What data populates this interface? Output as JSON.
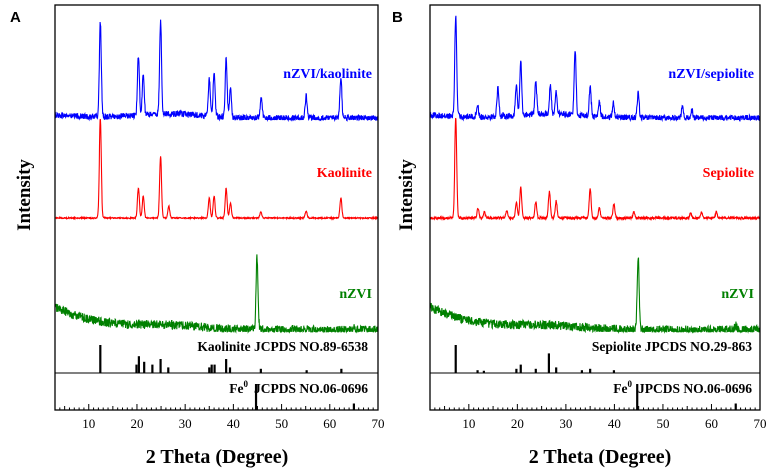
{
  "chart_data": [
    {
      "panel": "A",
      "type": "line",
      "xlabel": "2 Theta (Degree)",
      "ylabel": "Intensity",
      "xlim": [
        3,
        70
      ],
      "xticks": [
        10,
        20,
        30,
        40,
        50,
        60,
        70
      ],
      "series": [
        {
          "name": "nZVI/kaolinite",
          "color": "#0000ff",
          "baseline": 0.85,
          "noise": 0.03,
          "hump": 0.03,
          "peaks": [
            [
              12.4,
              0.95
            ],
            [
              20.3,
              0.6
            ],
            [
              21.3,
              0.4
            ],
            [
              24.9,
              0.92
            ],
            [
              35.0,
              0.38
            ],
            [
              36.0,
              0.45
            ],
            [
              38.5,
              0.58
            ],
            [
              39.4,
              0.3
            ],
            [
              45.8,
              0.2
            ],
            [
              55.1,
              0.22
            ],
            [
              62.3,
              0.4
            ]
          ]
        },
        {
          "name": "Kaolinite",
          "color": "#ff0000",
          "baseline": 0.5,
          "noise": 0.006,
          "hump": 0.0,
          "peaks": [
            [
              12.4,
              1.0
            ],
            [
              20.3,
              0.3
            ],
            [
              21.3,
              0.22
            ],
            [
              24.9,
              0.62
            ],
            [
              26.6,
              0.12
            ],
            [
              35.0,
              0.2
            ],
            [
              36.0,
              0.22
            ],
            [
              38.5,
              0.3
            ],
            [
              39.4,
              0.15
            ],
            [
              45.7,
              0.06
            ],
            [
              55.1,
              0.07
            ],
            [
              62.3,
              0.2
            ]
          ]
        },
        {
          "name": "nZVI",
          "color": "#008000",
          "baseline": 0.06,
          "noise": 0.05,
          "hump": 0.26,
          "peaks": [
            [
              44.9,
              0.8
            ],
            [
              65.0,
              0.05
            ]
          ]
        }
      ],
      "reference_patterns": [
        {
          "name": "Kaolinite JCPDS NO.89-6538",
          "color": "#000000",
          "sticks": [
            [
              12.4,
              1.0
            ],
            [
              19.9,
              0.3
            ],
            [
              20.4,
              0.6
            ],
            [
              21.5,
              0.4
            ],
            [
              23.2,
              0.3
            ],
            [
              24.9,
              0.5
            ],
            [
              26.5,
              0.2
            ],
            [
              35.0,
              0.2
            ],
            [
              35.5,
              0.3
            ],
            [
              36.1,
              0.3
            ],
            [
              38.5,
              0.5
            ],
            [
              39.3,
              0.2
            ],
            [
              45.7,
              0.15
            ],
            [
              55.2,
              0.1
            ],
            [
              62.4,
              0.15
            ]
          ]
        },
        {
          "name": "Fe",
          "name_sup": "0",
          "name_rest": "JCPDS NO.06-0696",
          "color": "#000000",
          "sticks": [
            [
              44.7,
              1.0
            ],
            [
              65.0,
              0.25
            ]
          ]
        }
      ]
    },
    {
      "panel": "B",
      "type": "line",
      "xlabel": "2 Theta (Degree)",
      "ylabel": "Intensity",
      "xlim": [
        2,
        70
      ],
      "xticks": [
        10,
        20,
        30,
        40,
        50,
        60,
        70
      ],
      "series": [
        {
          "name": "nZVI/sepiolite",
          "color": "#0000ff",
          "baseline": 0.85,
          "noise": 0.03,
          "hump": 0.03,
          "peaks": [
            [
              7.3,
              1.0
            ],
            [
              11.8,
              0.12
            ],
            [
              16.0,
              0.3
            ],
            [
              19.8,
              0.3
            ],
            [
              20.7,
              0.55
            ],
            [
              23.8,
              0.32
            ],
            [
              26.8,
              0.28
            ],
            [
              28.0,
              0.22
            ],
            [
              31.9,
              0.65
            ],
            [
              35.0,
              0.3
            ],
            [
              36.9,
              0.15
            ],
            [
              39.8,
              0.15
            ],
            [
              44.9,
              0.25
            ],
            [
              54.0,
              0.1
            ],
            [
              56.0,
              0.08
            ]
          ]
        },
        {
          "name": "Sepiolite",
          "color": "#ff0000",
          "baseline": 0.5,
          "noise": 0.012,
          "hump": 0.0,
          "peaks": [
            [
              7.3,
              1.0
            ],
            [
              11.9,
              0.1
            ],
            [
              13.2,
              0.06
            ],
            [
              17.8,
              0.07
            ],
            [
              19.8,
              0.15
            ],
            [
              20.7,
              0.32
            ],
            [
              23.8,
              0.16
            ],
            [
              26.6,
              0.26
            ],
            [
              28.0,
              0.17
            ],
            [
              35.0,
              0.3
            ],
            [
              36.9,
              0.1
            ],
            [
              39.9,
              0.14
            ],
            [
              44.0,
              0.06
            ],
            [
              55.7,
              0.05
            ],
            [
              58.0,
              0.06
            ],
            [
              61.0,
              0.06
            ]
          ]
        },
        {
          "name": "nZVI",
          "color": "#008000",
          "baseline": 0.06,
          "noise": 0.05,
          "hump": 0.26,
          "peaks": [
            [
              44.9,
              0.8
            ],
            [
              65.0,
              0.05
            ]
          ]
        }
      ],
      "reference_patterns": [
        {
          "name": "Sepiolite JPCDS NO.29-863",
          "color": "#000000",
          "sticks": [
            [
              7.3,
              1.0
            ],
            [
              11.8,
              0.1
            ],
            [
              13.1,
              0.08
            ],
            [
              19.8,
              0.15
            ],
            [
              20.7,
              0.3
            ],
            [
              23.8,
              0.15
            ],
            [
              26.5,
              0.7
            ],
            [
              28.0,
              0.2
            ],
            [
              33.3,
              0.1
            ],
            [
              35.0,
              0.15
            ],
            [
              39.9,
              0.1
            ]
          ]
        },
        {
          "name": "Fe",
          "name_sup": "0",
          "name_rest": "JPCDS NO.06-0696",
          "color": "#000000",
          "sticks": [
            [
              44.7,
              1.0
            ],
            [
              65.0,
              0.25
            ]
          ]
        }
      ]
    }
  ]
}
